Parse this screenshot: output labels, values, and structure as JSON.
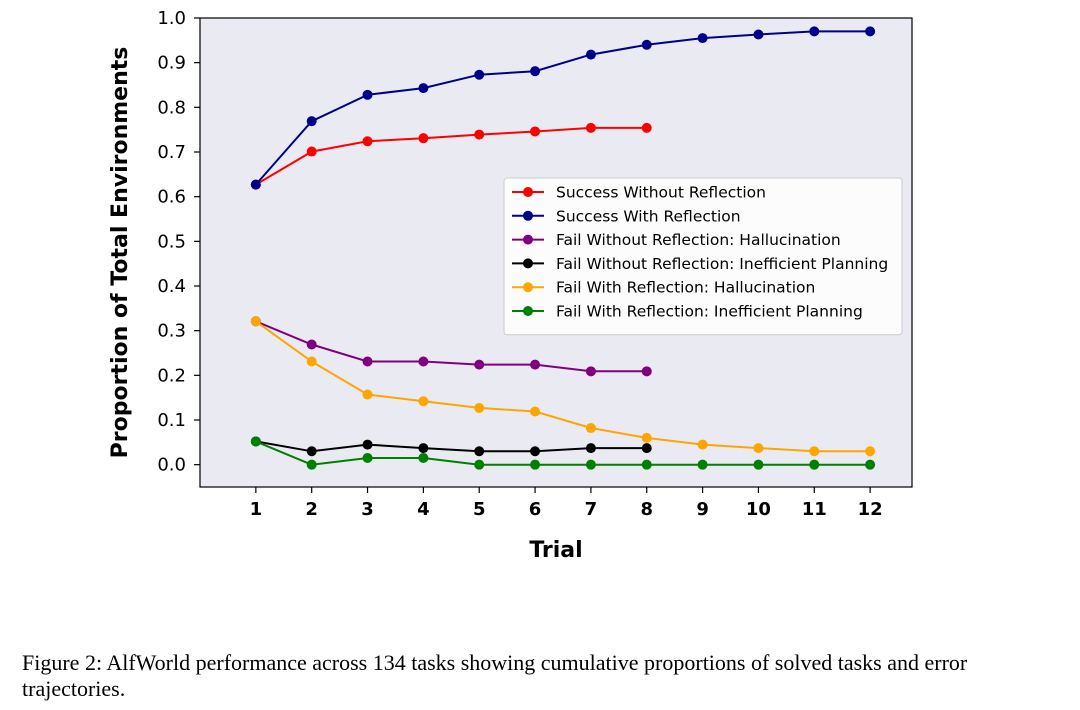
{
  "chart_data": {
    "type": "line",
    "title": "",
    "xlabel": "Trial",
    "ylabel": "Proportion of Total Environments",
    "xlim": [
      0.0,
      12.75
    ],
    "ylim": [
      -0.05,
      1.0
    ],
    "x_ticks": [
      1,
      2,
      3,
      4,
      5,
      6,
      7,
      8,
      9,
      10,
      11,
      12
    ],
    "y_ticks": [
      0.0,
      0.1,
      0.2,
      0.3,
      0.4,
      0.5,
      0.6,
      0.7,
      0.8,
      0.9,
      1.0
    ],
    "y_tick_labels": [
      "0.0",
      "0.1",
      "0.2",
      "0.3",
      "0.4",
      "0.5",
      "0.6",
      "0.7",
      "0.8",
      "0.9",
      "1.0"
    ],
    "grid": false,
    "legend_position": "center-right",
    "background_color": "#eaeaf2",
    "series": [
      {
        "name": "Success Without Reflection",
        "color": "#ff0000",
        "x": [
          1,
          2,
          3,
          4,
          5,
          6,
          7,
          8
        ],
        "y": [
          0.627,
          0.701,
          0.724,
          0.731,
          0.739,
          0.746,
          0.754,
          0.754
        ]
      },
      {
        "name": "Success With Reflection",
        "color": "#00008b",
        "x": [
          1,
          2,
          3,
          4,
          5,
          6,
          7,
          8,
          9,
          10,
          11,
          12
        ],
        "y": [
          0.627,
          0.769,
          0.828,
          0.843,
          0.873,
          0.881,
          0.918,
          0.94,
          0.955,
          0.963,
          0.97,
          0.97
        ]
      },
      {
        "name": "Fail Without Reflection: Hallucination",
        "color": "#800080",
        "x": [
          1,
          2,
          3,
          4,
          5,
          6,
          7,
          8
        ],
        "y": [
          0.321,
          0.269,
          0.231,
          0.231,
          0.224,
          0.224,
          0.209,
          0.209
        ]
      },
      {
        "name": "Fail Without Reflection: Inefficient Planning",
        "color": "#000000",
        "x": [
          1,
          2,
          3,
          4,
          5,
          6,
          7,
          8
        ],
        "y": [
          0.052,
          0.03,
          0.045,
          0.037,
          0.03,
          0.03,
          0.037,
          0.037
        ]
      },
      {
        "name": "Fail With Reflection: Hallucination",
        "color": "#ffa500",
        "x": [
          1,
          2,
          3,
          4,
          5,
          6,
          7,
          8,
          9,
          10,
          11,
          12
        ],
        "y": [
          0.321,
          0.231,
          0.157,
          0.142,
          0.127,
          0.119,
          0.082,
          0.06,
          0.045,
          0.037,
          0.03,
          0.03
        ]
      },
      {
        "name": "Fail With Reflection: Inefficient Planning",
        "color": "#008000",
        "x": [
          1,
          2,
          3,
          4,
          5,
          6,
          7,
          8,
          9,
          10,
          11,
          12
        ],
        "y": [
          0.052,
          0.0,
          0.015,
          0.015,
          0.0,
          0.0,
          0.0,
          0.0,
          0.0,
          0.0,
          0.0,
          0.0
        ]
      }
    ]
  },
  "caption": "Figure 2: AlfWorld performance across 134 tasks showing cumulative proportions of solved tasks and error trajectories."
}
